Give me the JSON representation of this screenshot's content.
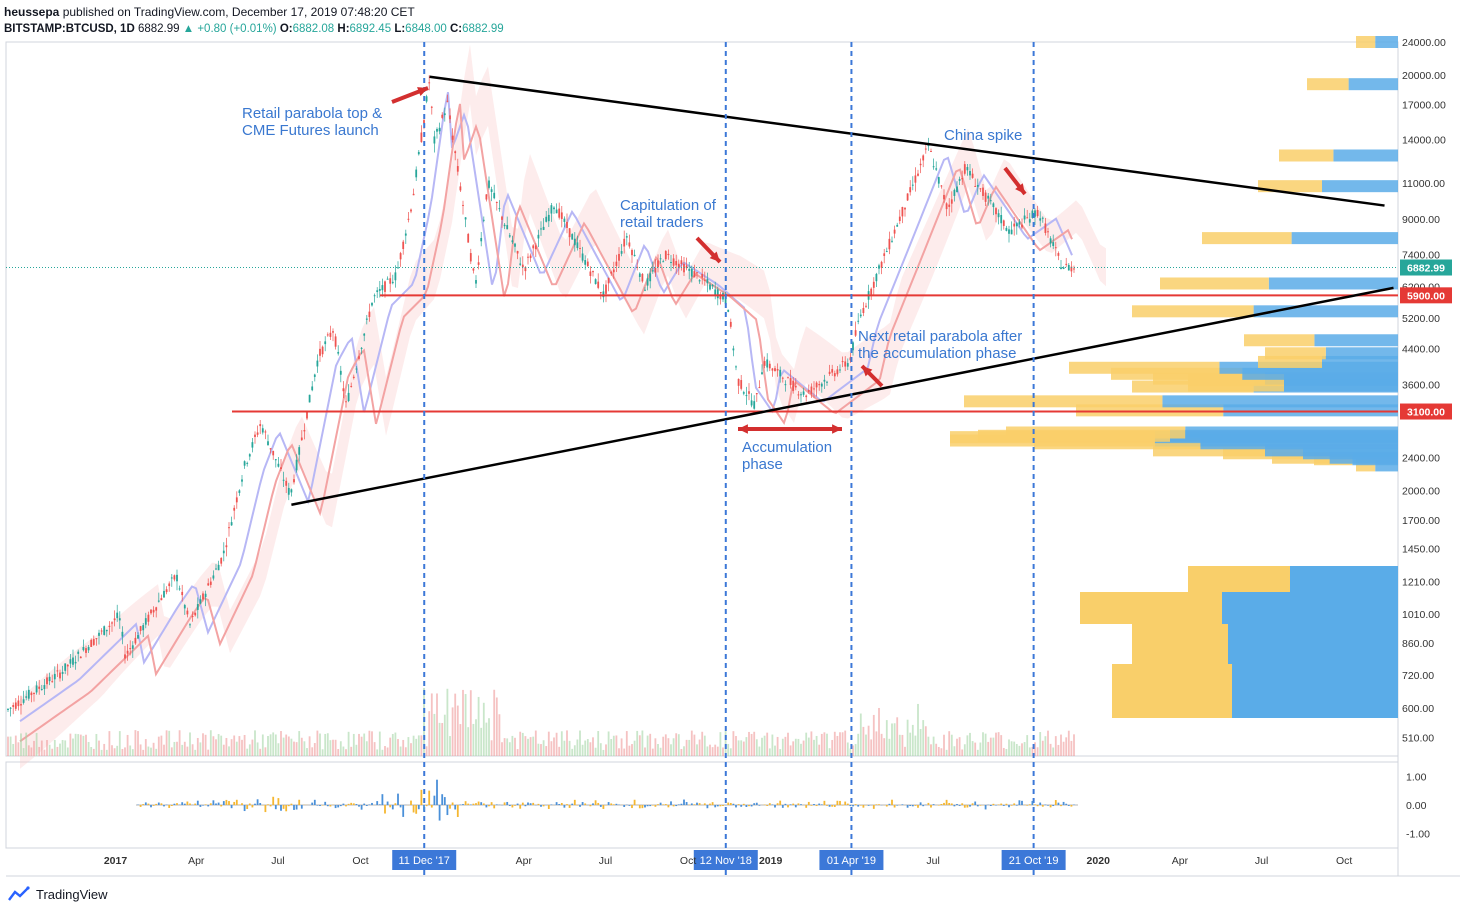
{
  "header": {
    "author": "heussepa",
    "published_text": "published on TradingView.com, December 17, 2019 07:48:20 CET",
    "symbol": "BITSTAMP:BTCUSD, 1D",
    "last": "6882.99",
    "change": "+0.80 (+0.01%)",
    "o_label": "O:",
    "o_value": "6882.08",
    "h_label": "H:",
    "h_value": "6892.45",
    "l_label": "L:",
    "l_value": "6848.00",
    "c_label": "C:",
    "c_value": "6882.99"
  },
  "footer": {
    "brand": "TradingView",
    "icon": "tradingview-logo-icon"
  },
  "colors": {
    "up": "#26a69a",
    "down": "#ef5350",
    "blue_line": "#3c78d8",
    "red_level": "#e53935",
    "arrow": "#d32f2f",
    "annotation": "#3a78d0",
    "vp_up": "#5aace8",
    "vp_down": "#f9cf6a"
  },
  "chart_data": {
    "type": "line",
    "title": "",
    "y_axis_scale": "log",
    "ylim": [
      460,
      24000
    ],
    "y_ticks": [
      "24000.00",
      "20000.00",
      "17000.00",
      "14000.00",
      "11000.00",
      "9000.00",
      "7400.00",
      "6200.00",
      "5200.00",
      "4400.00",
      "3600.00",
      "2400.00",
      "2000.00",
      "1700.00",
      "1450.00",
      "1210.00",
      "1010.00",
      "860.00",
      "720.00",
      "600.00",
      "510.00"
    ],
    "x_ticks": [
      "2017",
      "Apr",
      "Jul",
      "Oct",
      "Apr",
      "Jul",
      "Oct",
      "2019",
      "Jul",
      "2020",
      "Apr",
      "Jul",
      "Oct"
    ],
    "price_label": "6882.99",
    "price_level": 6882.99,
    "series": [
      {
        "values_approx": [
          [
            "2016-09-01",
            590
          ],
          [
            "2016-11-01",
            730
          ],
          [
            "2017-01-05",
            1000
          ],
          [
            "2017-01-12",
            800
          ],
          [
            "2017-02-20",
            1100
          ],
          [
            "2017-03-10",
            1250
          ],
          [
            "2017-03-25",
            950
          ],
          [
            "2017-05-01",
            1400
          ],
          [
            "2017-05-25",
            2300
          ],
          [
            "2017-06-12",
            2900
          ],
          [
            "2017-07-15",
            1950
          ],
          [
            "2017-08-15",
            4200
          ],
          [
            "2017-09-01",
            4900
          ],
          [
            "2017-09-15",
            3200
          ],
          [
            "2017-10-15",
            5800
          ],
          [
            "2017-11-10",
            6600
          ],
          [
            "2017-11-28",
            10000
          ],
          [
            "2017-12-17",
            19500
          ],
          [
            "2017-12-22",
            13800
          ],
          [
            "2018-01-06",
            17100
          ],
          [
            "2018-02-06",
            6200
          ],
          [
            "2018-02-20",
            11000
          ],
          [
            "2018-04-01",
            6800
          ],
          [
            "2018-05-05",
            9800
          ],
          [
            "2018-06-29",
            5900
          ],
          [
            "2018-07-25",
            8200
          ],
          [
            "2018-08-14",
            6200
          ],
          [
            "2018-09-05",
            7400
          ],
          [
            "2018-10-15",
            6500
          ],
          [
            "2018-11-14",
            5700
          ],
          [
            "2018-11-25",
            3700
          ],
          [
            "2018-12-15",
            3200
          ],
          [
            "2018-12-24",
            4100
          ],
          [
            "2019-02-08",
            3400
          ],
          [
            "2019-03-30",
            4100
          ],
          [
            "2019-04-10",
            5200
          ],
          [
            "2019-05-15",
            8000
          ],
          [
            "2019-06-26",
            13500
          ],
          [
            "2019-07-17",
            9500
          ],
          [
            "2019-08-06",
            12000
          ],
          [
            "2019-09-24",
            8400
          ],
          [
            "2019-10-26",
            9400
          ],
          [
            "2019-11-22",
            6900
          ],
          [
            "2019-12-17",
            6882.99
          ]
        ]
      }
    ],
    "levels": [
      {
        "label": "5900.00",
        "value": 5900
      },
      {
        "label": "3100.00",
        "value": 3100
      }
    ],
    "vlines": [
      {
        "date": "2017-12-11",
        "label": "11 Dec '17"
      },
      {
        "date": "2018-11-12",
        "label": "12 Nov '18"
      },
      {
        "date": "2019-04-01",
        "label": "01 Apr '19"
      },
      {
        "date": "2019-10-21",
        "label": "21 Oct '19"
      }
    ],
    "trendlines": [
      {
        "from": [
          "2017-12-17",
          19800
        ],
        "to": [
          "2020-11-15",
          9700
        ]
      },
      {
        "from": [
          "2017-07-16",
          1850
        ],
        "to": [
          "2020-11-25",
          6150
        ]
      }
    ],
    "annotations": [
      {
        "lines": [
          "Retail parabola top &",
          "CME Futures launch"
        ]
      },
      {
        "lines": [
          "Capitulation of",
          "retail traders"
        ]
      },
      {
        "lines": [
          "China spike"
        ]
      },
      {
        "lines": [
          "Next retail parabola after",
          "the accumulation phase"
        ]
      },
      {
        "lines": [
          "Accumulation",
          "phase"
        ]
      }
    ],
    "volume_profile": [
      [
        0,
        2600
      ],
      [
        0,
        1750
      ],
      [
        0,
        1560
      ],
      [
        60,
        2300
      ],
      [
        120,
        2380
      ],
      [
        180,
        2400
      ],
      [
        250,
        2460
      ],
      [
        350,
        2500
      ],
      [
        640,
        2640
      ],
      [
        520,
        2600
      ],
      [
        640,
        2690
      ],
      [
        600,
        2710
      ],
      [
        560,
        2760
      ],
      [
        460,
        3120
      ],
      [
        620,
        3280
      ],
      [
        380,
        3560
      ],
      [
        300,
        3580
      ],
      [
        350,
        3720
      ],
      [
        300,
        3690
      ],
      [
        410,
        3820
      ],
      [
        470,
        3950
      ],
      [
        200,
        4080
      ],
      [
        190,
        4280
      ],
      [
        220,
        4600
      ],
      [
        380,
        5400
      ],
      [
        340,
        6300
      ],
      [
        280,
        8100
      ],
      [
        200,
        10800
      ],
      [
        170,
        12800
      ],
      [
        130,
        19000
      ],
      [
        60,
        24000
      ]
    ],
    "oscillator": {
      "y_ticks": [
        "1.00",
        "0.00",
        "-1.00"
      ],
      "ylim": [
        -1.5,
        1.5
      ]
    }
  }
}
